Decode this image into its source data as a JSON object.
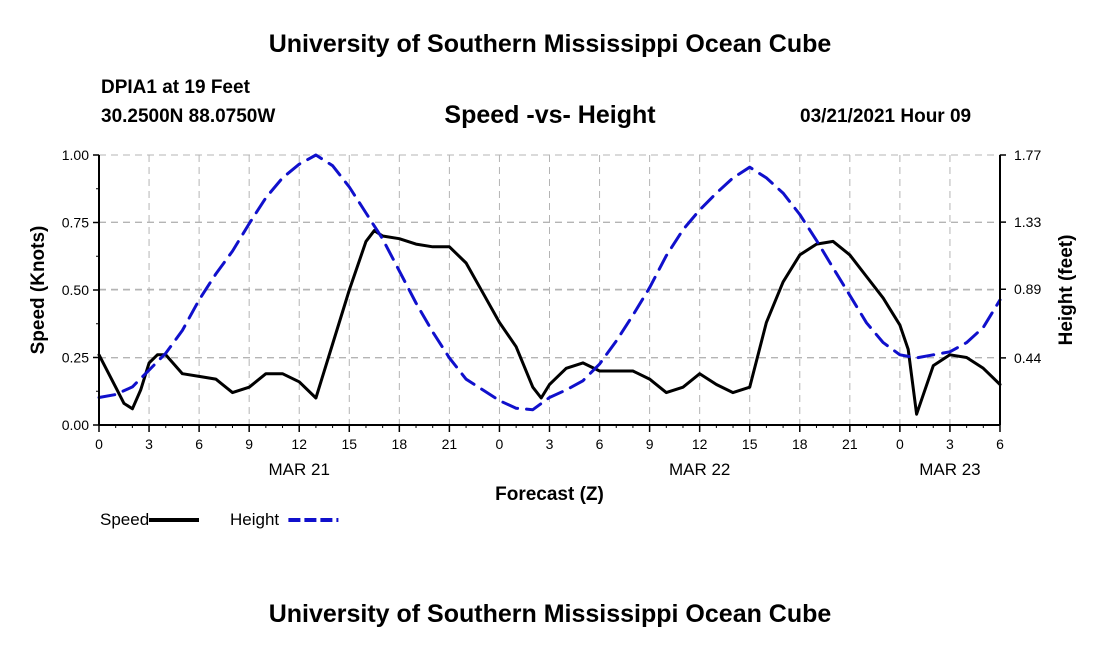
{
  "header": {
    "title": "University of Southern Mississippi Ocean Cube",
    "station": "DPIA1 at 19 Feet",
    "coords": "30.2500N 88.0750W",
    "datetime": "03/21/2021 Hour 09"
  },
  "footer": {
    "title": "University of Southern Mississippi Ocean Cube"
  },
  "colors": {
    "speed": "#000000",
    "height": "#1010cc",
    "grid": "#b4b4b4"
  },
  "chart_data": {
    "type": "line",
    "title": "Speed -vs- Height",
    "xlabel": "Forecast (Z)",
    "ylabel": "Speed (Knots)",
    "y2label": "Height (feet)",
    "xlim": [
      0,
      54
    ],
    "ylim": [
      0,
      1.0
    ],
    "y2lim": [
      0,
      1.77
    ],
    "yticks": [
      "0.00",
      "0.25",
      "0.50",
      "0.75",
      "1.00"
    ],
    "y2ticks": [
      {
        "value": 0.44,
        "label": "0.44"
      },
      {
        "value": 0.89,
        "label": "0.89"
      },
      {
        "value": 1.33,
        "label": "1.33"
      },
      {
        "value": 1.77,
        "label": "1.77"
      }
    ],
    "xticks": [
      "0",
      "3",
      "6",
      "9",
      "12",
      "15",
      "18",
      "21",
      "0",
      "3",
      "6",
      "9",
      "12",
      "15",
      "18",
      "21",
      "0",
      "3",
      "6"
    ],
    "date_labels": [
      {
        "x": 12,
        "label": "MAR 21"
      },
      {
        "x": 36,
        "label": "MAR 22"
      },
      {
        "x": 51,
        "label": "MAR 23"
      }
    ],
    "legend": [
      {
        "name": "Speed",
        "style": "solid"
      },
      {
        "name": "Height",
        "style": "dashed"
      }
    ],
    "series": [
      {
        "name": "Speed",
        "axis": "left",
        "x": [
          0,
          1,
          1.5,
          2,
          2.5,
          3,
          3.5,
          4,
          5,
          6,
          7,
          8,
          9,
          10,
          11,
          12,
          13,
          14,
          15,
          16,
          16.5,
          17,
          18,
          19,
          20,
          21,
          22,
          23,
          24,
          25,
          26,
          26.5,
          27,
          28,
          29,
          30,
          31,
          32,
          33,
          34,
          35,
          36,
          37,
          38,
          39,
          40,
          41,
          42,
          43,
          44,
          45,
          46,
          47,
          48,
          48.5,
          49,
          50,
          51,
          52,
          53,
          54
        ],
        "values": [
          0.26,
          0.14,
          0.08,
          0.06,
          0.13,
          0.23,
          0.26,
          0.26,
          0.19,
          0.18,
          0.17,
          0.12,
          0.14,
          0.19,
          0.19,
          0.16,
          0.1,
          0.3,
          0.5,
          0.68,
          0.72,
          0.7,
          0.69,
          0.67,
          0.66,
          0.66,
          0.6,
          0.49,
          0.38,
          0.29,
          0.14,
          0.1,
          0.15,
          0.21,
          0.23,
          0.2,
          0.2,
          0.2,
          0.17,
          0.12,
          0.14,
          0.19,
          0.15,
          0.12,
          0.14,
          0.38,
          0.53,
          0.63,
          0.67,
          0.68,
          0.63,
          0.55,
          0.47,
          0.37,
          0.28,
          0.04,
          0.22,
          0.26,
          0.25,
          0.21,
          0.15
        ]
      },
      {
        "name": "Height",
        "axis": "right",
        "x": [
          0,
          1,
          2,
          3,
          4,
          5,
          6,
          7,
          8,
          9,
          10,
          11,
          12,
          13,
          14,
          15,
          16,
          17,
          18,
          19,
          20,
          21,
          22,
          23,
          24,
          25,
          26,
          27,
          28,
          29,
          30,
          31,
          32,
          33,
          34,
          35,
          36,
          37,
          38,
          39,
          40,
          41,
          42,
          43,
          44,
          45,
          46,
          47,
          48,
          49,
          50,
          51,
          52,
          53,
          54
        ],
        "values": [
          0.18,
          0.2,
          0.25,
          0.36,
          0.47,
          0.62,
          0.82,
          0.99,
          1.14,
          1.32,
          1.49,
          1.62,
          1.71,
          1.77,
          1.7,
          1.56,
          1.39,
          1.22,
          1.01,
          0.8,
          0.61,
          0.44,
          0.3,
          0.23,
          0.16,
          0.11,
          0.1,
          0.18,
          0.23,
          0.29,
          0.4,
          0.55,
          0.72,
          0.9,
          1.11,
          1.28,
          1.41,
          1.52,
          1.62,
          1.69,
          1.62,
          1.52,
          1.38,
          1.21,
          1.03,
          0.85,
          0.67,
          0.54,
          0.46,
          0.44,
          0.46,
          0.48,
          0.54,
          0.64,
          0.82
        ]
      }
    ]
  }
}
